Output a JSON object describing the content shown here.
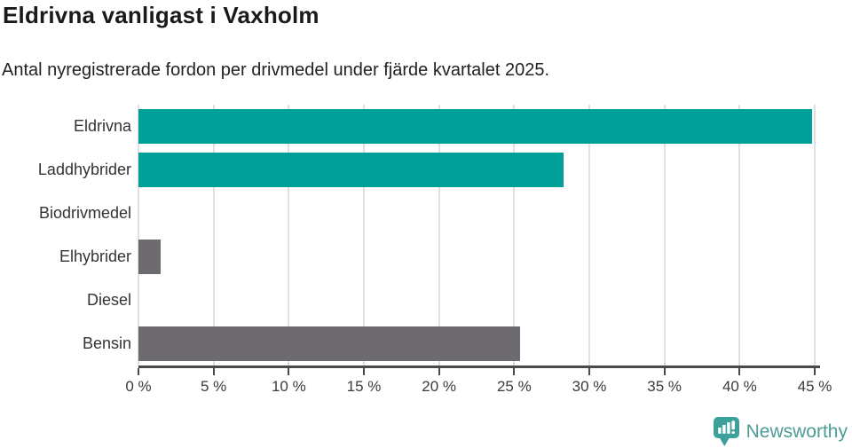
{
  "header": {
    "title": "Eldrivna vanligast i Vaxholm",
    "subtitle": "Antal nyregistrerade fordon per drivmedel under fjärde kvartalet 2025."
  },
  "chart_data": {
    "type": "bar",
    "orientation": "horizontal",
    "title": "Eldrivna vanligast i Vaxholm",
    "subtitle": "Antal nyregistrerade fordon per drivmedel under fjärde kvartalet 2025.",
    "categories": [
      "Eldrivna",
      "Laddhybrider",
      "Biodrivmedel",
      "Elhybrider",
      "Diesel",
      "Bensin"
    ],
    "values": [
      44.8,
      28.3,
      0,
      1.5,
      0,
      25.4
    ],
    "bar_colors": [
      "#00a099",
      "#00a099",
      "#6e6b70",
      "#6e6b70",
      "#6e6b70",
      "#6e6b70"
    ],
    "xlabel": "",
    "ylabel": "",
    "xlim": [
      0,
      45
    ],
    "x_tick_values": [
      0,
      5,
      10,
      15,
      20,
      25,
      30,
      35,
      40,
      45
    ],
    "x_tick_labels": [
      "0 %",
      "5 %",
      "10 %",
      "15 %",
      "20 %",
      "25 %",
      "30 %",
      "35 %",
      "40 %",
      "45 %"
    ],
    "grid": "vertical",
    "legend": "none"
  },
  "colors": {
    "teal": "#00a099",
    "gray": "#6e6b70",
    "gridline": "#e0e0e0",
    "axis": "#4a4a4a",
    "title_text": "#1a1a1a",
    "label_text": "#333333",
    "logo_icon": "#3ca09b",
    "logo_text": "#4d9b95"
  },
  "footer": {
    "brand": "Newsworthy",
    "logo_icon": "bar-chart-speech-bubble-icon"
  }
}
